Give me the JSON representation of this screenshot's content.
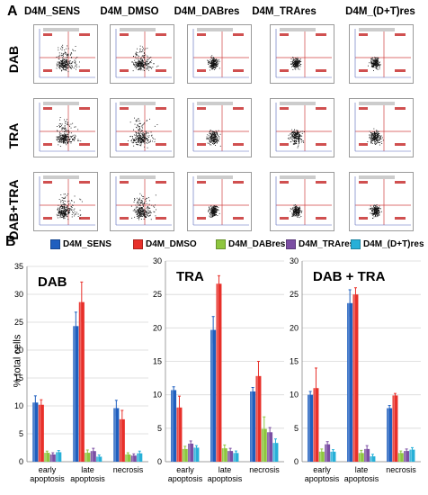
{
  "panel_a_label": "A",
  "panel_b_label": "B",
  "flow": {
    "columns": [
      "D4M_SENS",
      "D4M_DMSO",
      "D4M_DABres",
      "D4M_TRAres",
      "D4M_(D+T)res"
    ],
    "rows": [
      "DAB",
      "TRA",
      "DAB+TRA"
    ]
  },
  "legend": [
    {
      "name": "D4M_SENS",
      "color": "#1f5fbf"
    },
    {
      "name": "D4M_DMSO",
      "color": "#e8302a"
    },
    {
      "name": "D4M_DABres",
      "color": "#8ec63f"
    },
    {
      "name": "D4M_TRAres",
      "color": "#7b4ea3"
    },
    {
      "name": "D4M_(D+T)res",
      "color": "#27b0d8"
    }
  ],
  "y_axis_label": "% total cells",
  "chart_data": [
    {
      "type": "bar",
      "title": "DAB",
      "ylim": [
        0,
        35
      ],
      "yticks": [
        0,
        5,
        10,
        15,
        20,
        25,
        30,
        35
      ],
      "categories": [
        "early apoptosis",
        "late apoptosis",
        "necrosis"
      ],
      "series": [
        {
          "name": "D4M_SENS",
          "values": [
            10.6,
            24.3,
            9.6
          ],
          "errors": [
            1.2,
            2.5,
            1.4
          ]
        },
        {
          "name": "D4M_DMSO",
          "values": [
            10.2,
            28.6,
            7.6
          ],
          "errors": [
            0.9,
            3.6,
            1.6
          ]
        },
        {
          "name": "D4M_DABres",
          "values": [
            1.6,
            1.6,
            1.3
          ],
          "errors": [
            0.3,
            0.5,
            0.3
          ]
        },
        {
          "name": "D4M_TRAres",
          "values": [
            1.3,
            1.9,
            1.1
          ],
          "errors": [
            0.3,
            0.5,
            0.3
          ]
        },
        {
          "name": "D4M_(D+T)res",
          "values": [
            1.7,
            0.9,
            1.5
          ],
          "errors": [
            0.3,
            0.3,
            0.4
          ]
        }
      ]
    },
    {
      "type": "bar",
      "title": "TRA",
      "ylim": [
        0,
        30
      ],
      "yticks": [
        0,
        5,
        10,
        15,
        20,
        25,
        30
      ],
      "categories": [
        "early apoptosis",
        "late apoptosis",
        "necrosis"
      ],
      "series": [
        {
          "name": "D4M_SENS",
          "values": [
            10.7,
            19.7,
            10.5
          ],
          "errors": [
            0.5,
            2.0,
            0.6
          ]
        },
        {
          "name": "D4M_DMSO",
          "values": [
            8.1,
            26.6,
            12.8
          ],
          "errors": [
            1.7,
            1.2,
            2.2
          ]
        },
        {
          "name": "D4M_DABres",
          "values": [
            1.9,
            2.0,
            4.9
          ],
          "errors": [
            0.4,
            0.5,
            1.8
          ]
        },
        {
          "name": "D4M_TRAres",
          "values": [
            2.7,
            1.6,
            4.4
          ],
          "errors": [
            0.4,
            0.4,
            0.7
          ]
        },
        {
          "name": "D4M_(D+T)res",
          "values": [
            2.1,
            1.3,
            2.8
          ],
          "errors": [
            0.3,
            0.3,
            0.6
          ]
        }
      ]
    },
    {
      "type": "bar",
      "title": "DAB + TRA",
      "ylim": [
        0,
        30
      ],
      "yticks": [
        0,
        5,
        10,
        15,
        20,
        25,
        30
      ],
      "categories": [
        "early apoptosis",
        "late apoptosis",
        "necrosis"
      ],
      "series": [
        {
          "name": "D4M_SENS",
          "values": [
            10.0,
            23.7,
            8.0
          ],
          "errors": [
            0.5,
            2.0,
            0.4
          ]
        },
        {
          "name": "D4M_DMSO",
          "values": [
            11.0,
            25.0,
            9.9
          ],
          "errors": [
            3.0,
            1.0,
            0.3
          ]
        },
        {
          "name": "D4M_DABres",
          "values": [
            1.5,
            1.3,
            1.3
          ],
          "errors": [
            0.4,
            0.4,
            0.3
          ]
        },
        {
          "name": "D4M_TRAres",
          "values": [
            2.6,
            1.9,
            1.6
          ],
          "errors": [
            0.4,
            0.5,
            0.3
          ]
        },
        {
          "name": "D4M_(D+T)res",
          "values": [
            1.5,
            0.8,
            1.8
          ],
          "errors": [
            0.3,
            0.3,
            0.3
          ]
        }
      ]
    }
  ]
}
